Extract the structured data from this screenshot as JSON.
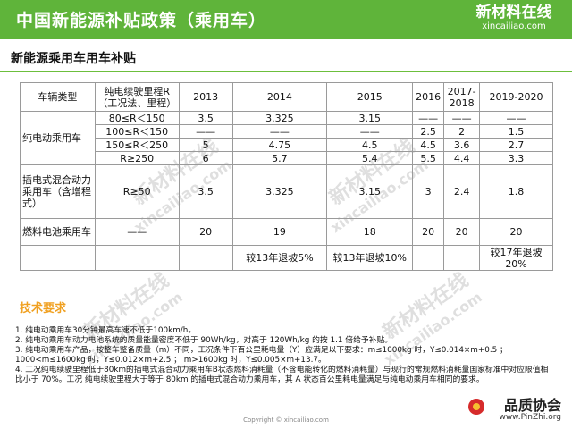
{
  "header": {
    "title": "中国新能源补贴政策（乘用车）"
  },
  "logo": {
    "cn": "新材料在线",
    "en": "xincailiao.com"
  },
  "subtitle": "新能源乘用车用车补贴",
  "table": {
    "col_vehicle_type": "车辆类型",
    "col_range": "纯电续驶里程R（工况法、里程）",
    "years": [
      "2013",
      "2014",
      "2015",
      "2016",
      "2017-2018",
      "2019-2020"
    ],
    "bev_label": "纯电动乘用车",
    "bev_rows": [
      {
        "range": "80≤R＜150",
        "values": [
          "3.5",
          "3.325",
          "3.15",
          "——",
          "——",
          "——"
        ]
      },
      {
        "range": "100≤R＜150",
        "values": [
          "——",
          "——",
          "——",
          "2.5",
          "2",
          "1.5"
        ]
      },
      {
        "range": "150≤R＜250",
        "values": [
          "5",
          "4.75",
          "4.5",
          "4.5",
          "3.6",
          "2.7"
        ]
      },
      {
        "range": "R≥250",
        "values": [
          "6",
          "5.7",
          "5.4",
          "5.5",
          "4.4",
          "3.3"
        ]
      }
    ],
    "phev": {
      "label": "插电式混合动力乘用车（含增程式）",
      "range": "R≥50",
      "values": [
        "3.5",
        "3.325",
        "3.15",
        "3",
        "2.4",
        "1.8"
      ]
    },
    "fcev": {
      "label": "燃料电池乘用车",
      "range": "——",
      "values": [
        "20",
        "19",
        "18",
        "20",
        "20",
        "20"
      ]
    },
    "notes": {
      "n2014": "较13年退坡5%",
      "n2015": "较13年退坡10%",
      "n2019": "较17年退坡20%"
    }
  },
  "requirements": {
    "title": "技术要求",
    "items": [
      "1. 纯电动乘用车30分钟最高车速不低于100km/h。",
      "2. 纯电动乘用车动力电池系统的质量能量密度不低于 90Wh/kg，对高于 120Wh/kg 的按 1.1 倍给予补贴。",
      "3. 纯电动乘用车产品，按整车整备质量（m）不同，工况条件下百公里耗电量（Y）应满足以下要求：m≤1000kg 时，Y≤0.014×m+0.5 ； 1000<m≤1600kg 时，Y≤0.012×m+2.5 ； m>1600kg 时，Y≤0.005×m+13.7。",
      "4. 工况纯电续驶里程低于80km的插电式混合动力乘用车B状态燃料消耗量（不含电能转化的燃料消耗量）与现行的常规燃料消耗量国家标准中对应限值相比小于 70%。工况 纯电续驶里程大于等于 80km 的插电式混合动力乘用车，其 A 状态百公里耗电量满足与纯电动乘用车相同的要求。"
    ]
  },
  "watermark": {
    "cn": "新材料在线",
    "en": "xincailiao.com"
  },
  "copyright": "Copyright © xincailiao.com",
  "footer_logo": {
    "cn": "品质协会",
    "url": "www.PinZhi.org"
  },
  "colors": {
    "header_bg": "#5fb43a",
    "accent": "#f0a020"
  }
}
